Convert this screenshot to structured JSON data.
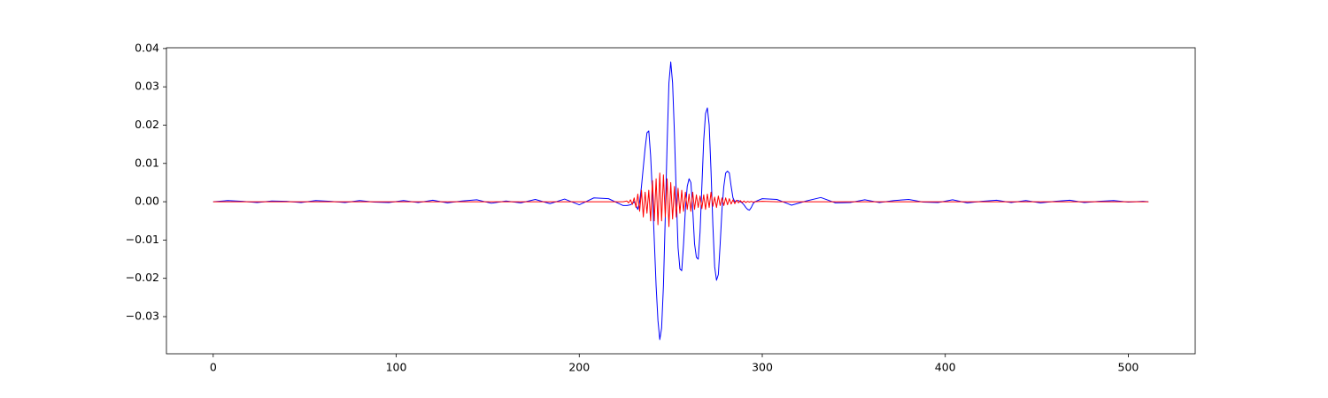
{
  "chart_data": {
    "type": "line",
    "x": [
      0,
      8,
      16,
      24,
      32,
      40,
      48,
      56,
      64,
      72,
      80,
      88,
      96,
      104,
      112,
      120,
      128,
      136,
      144,
      152,
      160,
      168,
      176,
      184,
      192,
      200,
      208,
      216,
      224,
      226,
      227,
      228,
      229,
      230,
      231,
      232,
      233,
      234,
      235,
      236,
      237,
      238,
      239,
      240,
      241,
      242,
      243,
      244,
      245,
      246,
      247,
      248,
      249,
      250,
      251,
      252,
      253,
      254,
      255,
      256,
      257,
      258,
      259,
      260,
      261,
      262,
      263,
      264,
      265,
      266,
      267,
      268,
      269,
      270,
      271,
      272,
      273,
      274,
      275,
      276,
      277,
      278,
      279,
      280,
      281,
      282,
      283,
      284,
      285,
      286,
      287,
      288,
      289,
      290,
      291,
      292,
      293,
      294,
      295,
      296,
      300,
      308,
      316,
      324,
      332,
      340,
      348,
      356,
      364,
      372,
      380,
      388,
      396,
      404,
      412,
      420,
      428,
      436,
      444,
      452,
      460,
      468,
      476,
      484,
      492,
      500,
      508,
      511
    ],
    "series": [
      {
        "color": "#0000ff",
        "values": [
          0,
          0.0003,
          0.0001,
          -0.0002,
          0.0002,
          0.0001,
          -0.0002,
          0.0003,
          0.0001,
          -0.0002,
          0.0003,
          -0.0001,
          -0.0002,
          0.0003,
          -0.0002,
          0.0004,
          -0.0003,
          0.0002,
          0.0005,
          -0.0004,
          0.0002,
          -0.0003,
          0.0006,
          -0.0005,
          0.0007,
          -0.0008,
          0.001,
          0.0008,
          -0.001,
          -0.001,
          -0.0009,
          -0.0008,
          -0.0005,
          0.0,
          -0.001,
          -0.002,
          0.0,
          0.004,
          0.009,
          0.014,
          0.018,
          0.0185,
          0.012,
          0.002,
          -0.01,
          -0.022,
          -0.031,
          -0.036,
          -0.033,
          -0.022,
          -0.004,
          0.015,
          0.031,
          0.0365,
          0.031,
          0.018,
          0.002,
          -0.012,
          -0.0175,
          -0.018,
          -0.011,
          -0.002,
          0.004,
          0.006,
          0.005,
          -0.002,
          -0.011,
          -0.0145,
          -0.015,
          -0.008,
          0.004,
          0.016,
          0.023,
          0.0245,
          0.02,
          0.008,
          -0.006,
          -0.017,
          -0.0205,
          -0.019,
          -0.011,
          -0.002,
          0.004,
          0.0075,
          0.008,
          0.0075,
          0.004,
          0.001,
          0.0,
          0.0003,
          0.0003,
          0.0,
          -0.0003,
          -0.0008,
          -0.0015,
          -0.002,
          -0.0022,
          -0.0015,
          -0.0005,
          0.0,
          0.0008,
          0.0006,
          -0.0009,
          0.0002,
          0.0011,
          -0.0003,
          -0.0002,
          0.0005,
          -0.0002,
          0.0003,
          0.0006,
          -0.0001,
          -0.0002,
          0.0005,
          -0.0003,
          0.0001,
          0.0004,
          -0.0002,
          0.0003,
          -0.0003,
          0.0001,
          0.0004,
          -0.0002,
          0.0001,
          0.0003,
          -0.0001,
          0.0001,
          0.0
        ]
      },
      {
        "color": "#ff0000",
        "values": [
          0,
          0,
          0,
          0,
          0,
          0,
          0,
          0,
          0,
          0,
          0,
          0,
          0,
          0,
          0,
          0,
          0,
          0,
          0,
          0,
          0,
          0,
          0,
          0,
          0,
          0,
          0,
          0,
          0,
          0.0002,
          -0.0003,
          0.0005,
          -0.0007,
          0.001,
          -0.0015,
          0.002,
          -0.0025,
          0.003,
          -0.004,
          0.0025,
          -0.003,
          0.003,
          -0.005,
          0.0055,
          -0.005,
          0.006,
          -0.006,
          0.0075,
          -0.005,
          0.007,
          -0.004,
          0.006,
          -0.0065,
          0.005,
          -0.0045,
          0.004,
          -0.004,
          0.0035,
          -0.003,
          0.003,
          -0.0025,
          0.0025,
          -0.002,
          0.002,
          -0.0025,
          0.0025,
          -0.002,
          0.0018,
          -0.0015,
          0.0015,
          -0.0018,
          0.0018,
          -0.002,
          0.002,
          -0.0015,
          0.0025,
          -0.0012,
          0.0012,
          -0.0015,
          0.0015,
          -0.001,
          0.001,
          -0.001,
          0.001,
          -0.0008,
          0.0008,
          -0.0006,
          0.0005,
          -0.0005,
          0.0004,
          -0.0003,
          0.0003,
          -0.0002,
          0.0002,
          -0.0002,
          0.0001,
          -0.0001,
          0.0001,
          -0.0001,
          0,
          0.0001,
          0,
          0,
          0,
          0,
          0,
          0,
          0,
          0,
          0,
          0,
          0,
          0,
          0,
          0,
          0,
          0,
          0,
          0,
          0,
          0,
          0,
          0,
          0,
          0,
          0,
          0,
          0
        ]
      }
    ],
    "xlim": [
      -25.55,
      536.55
    ],
    "xticks": [
      0,
      100,
      200,
      300,
      400,
      500
    ],
    "ylim": [
      -0.0397,
      0.0402
    ],
    "yticks": [
      {
        "value": -0.03,
        "label": "−0.03"
      },
      {
        "value": -0.02,
        "label": "−0.02"
      },
      {
        "value": -0.01,
        "label": "−0.01"
      },
      {
        "value": 0,
        "label": "0.00"
      },
      {
        "value": 0.01,
        "label": "0.01"
      },
      {
        "value": 0.02,
        "label": "0.02"
      },
      {
        "value": 0.03,
        "label": "0.03"
      },
      {
        "value": 0.04,
        "label": "0.04"
      }
    ],
    "grid": false
  }
}
